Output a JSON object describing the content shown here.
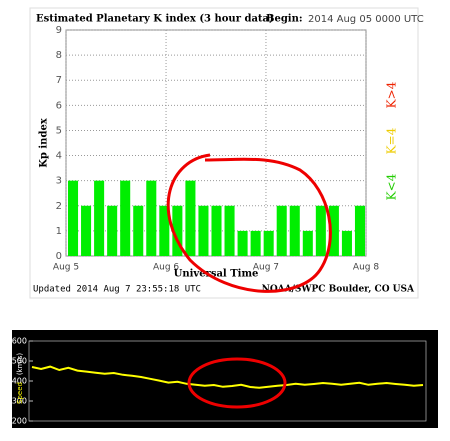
{
  "chart_data": [
    {
      "type": "bar",
      "title": "Estimated Planetary K index (3 hour data)",
      "begin_label": "Begin:",
      "begin": "2014 Aug 05 0000 UTC",
      "ylabel": "Kp index",
      "xlabel": "Universal Time",
      "values": [
        3,
        2,
        3,
        2,
        3,
        2,
        3,
        2,
        2,
        3,
        2,
        2,
        2,
        1,
        1,
        1,
        2,
        2,
        1,
        2,
        2,
        1,
        2
      ],
      "color": "#00ee00",
      "xlim": [
        0,
        23
      ],
      "xticks": [
        {
          "value": 0,
          "label": "Aug 5"
        },
        {
          "value": 7.67,
          "label": "Aug 6"
        },
        {
          "value": 15.33,
          "label": "Aug 7"
        },
        {
          "value": 23,
          "label": "Aug 8"
        }
      ],
      "ylim": [
        0,
        9
      ],
      "yticks": [
        0,
        1,
        2,
        3,
        4,
        5,
        6,
        7,
        8,
        9
      ],
      "grid": true,
      "legend": [
        {
          "label": "K>4",
          "color": "#ee2200"
        },
        {
          "label": "K=4",
          "color": "#eecc00"
        },
        {
          "label": "K<4",
          "color": "#22cc00"
        }
      ],
      "updated": "Updated 2014 Aug  7 23:55:18 UTC",
      "source": "NOAA/SWPC Boulder, CO USA"
    },
    {
      "type": "line",
      "ylabel": "Speed",
      "ylabel_unit": "(km/s)",
      "values": [
        470,
        460,
        472,
        455,
        466,
        452,
        447,
        441,
        436,
        440,
        431,
        426,
        420,
        411,
        402,
        392,
        396,
        386,
        381,
        376,
        380,
        371,
        375,
        381,
        370,
        366,
        371,
        376,
        380,
        386,
        381,
        385,
        390,
        386,
        381,
        386,
        391,
        381,
        386,
        390,
        385,
        381,
        376,
        380
      ],
      "color": "#ffff00",
      "ylim": [
        200,
        600
      ],
      "yticks": [
        200,
        300,
        400,
        500,
        600
      ]
    }
  ]
}
